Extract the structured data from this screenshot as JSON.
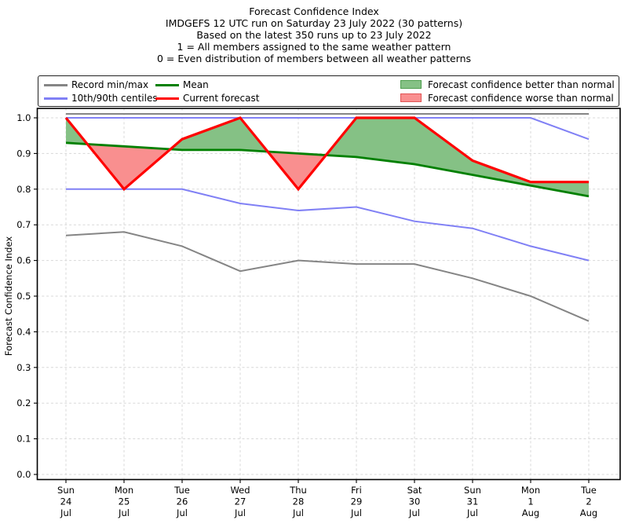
{
  "title": {
    "lines": [
      "Forecast Confidence Index",
      "IMDGEFS 12 UTC run on Saturday 23 July 2022 (30 patterns)",
      "Based on the latest 350 runs up to 23 July 2022",
      "1 = All members assigned to the same weather pattern",
      "0 = Even distribution of members between all weather patterns"
    ]
  },
  "legend": {
    "items": [
      {
        "label": "Record min/max",
        "swatch": "line",
        "color": "#858585"
      },
      {
        "label": "10th/90th centiles",
        "swatch": "line",
        "color": "#8080f5"
      },
      {
        "label": "Mean",
        "swatch": "line",
        "color": "#008000"
      },
      {
        "label": "Current forecast",
        "swatch": "line",
        "color": "#ff0000"
      },
      {
        "label": "Forecast confidence better than normal",
        "swatch": "patch",
        "color": "#85c185",
        "edge": "#4e9e4e"
      },
      {
        "label": "Forecast confidence worse than normal",
        "swatch": "patch",
        "color": "#f98f8f",
        "edge": "#e05555"
      }
    ]
  },
  "chart_data": {
    "type": "line",
    "title": "Forecast Confidence Index",
    "xlabel": "",
    "ylabel": "Forecast Confidence Index",
    "ylim": [
      0.0,
      1.0
    ],
    "yticks": [
      0.0,
      0.1,
      0.2,
      0.3,
      0.4,
      0.5,
      0.6,
      0.7,
      0.8,
      0.9,
      1.0
    ],
    "grid": true,
    "legend_position": "top",
    "categories": [
      [
        "Sun",
        "24",
        "Jul"
      ],
      [
        "Mon",
        "25",
        "Jul"
      ],
      [
        "Tue",
        "26",
        "Jul"
      ],
      [
        "Wed",
        "27",
        "Jul"
      ],
      [
        "Thu",
        "28",
        "Jul"
      ],
      [
        "Fri",
        "29",
        "Jul"
      ],
      [
        "Sat",
        "30",
        "Jul"
      ],
      [
        "Sun",
        "31",
        "Jul"
      ],
      [
        "Mon",
        "1",
        "Aug"
      ],
      [
        "Tue",
        "2",
        "Aug"
      ]
    ],
    "series": [
      {
        "key": "record_max",
        "name": "Record max",
        "color": "#858585",
        "values": [
          1.0,
          1.0,
          1.0,
          1.0,
          1.0,
          1.0,
          1.0,
          1.0,
          1.0,
          1.0
        ]
      },
      {
        "key": "record_min",
        "name": "Record min",
        "color": "#858585",
        "values": [
          0.67,
          0.68,
          0.64,
          0.57,
          0.6,
          0.59,
          0.59,
          0.55,
          0.5,
          0.43
        ]
      },
      {
        "key": "p90",
        "name": "90th centile",
        "color": "#8080f5",
        "values": [
          1.0,
          1.0,
          1.0,
          1.0,
          1.0,
          1.0,
          1.0,
          1.0,
          1.0,
          0.94
        ]
      },
      {
        "key": "p10",
        "name": "10th centile",
        "color": "#8080f5",
        "values": [
          0.8,
          0.8,
          0.8,
          0.76,
          0.74,
          0.75,
          0.71,
          0.69,
          0.64,
          0.6
        ]
      },
      {
        "key": "mean",
        "name": "Mean",
        "color": "#008000",
        "values": [
          0.93,
          0.92,
          0.91,
          0.91,
          0.9,
          0.89,
          0.87,
          0.84,
          0.81,
          0.78
        ]
      },
      {
        "key": "current",
        "name": "Current forecast",
        "color": "#ff0000",
        "values": [
          1.0,
          0.8,
          0.94,
          1.0,
          0.8,
          1.0,
          1.0,
          0.88,
          0.82,
          0.82
        ]
      }
    ],
    "fills": {
      "between": [
        "current",
        "mean"
      ],
      "better_color": "#85c185",
      "worse_color": "#f98f8f",
      "better_meaning": "Forecast confidence better than normal",
      "worse_meaning": "Forecast confidence worse than normal"
    },
    "colors": {
      "grid": "#d8d8d8",
      "spine": "#000000",
      "text": "#000000"
    }
  }
}
